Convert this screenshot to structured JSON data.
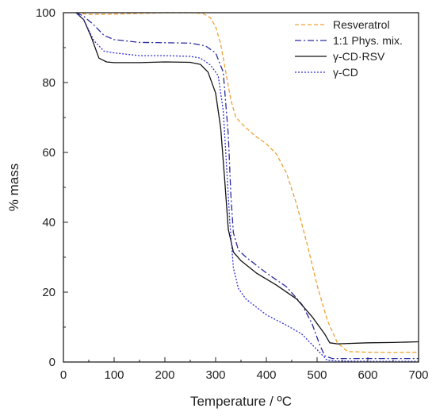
{
  "chart_data": {
    "type": "line",
    "title": "",
    "xlabel": "Temperature / ºC",
    "ylabel": "% mass",
    "xlim": [
      0,
      700
    ],
    "ylim": [
      0,
      100
    ],
    "xticks": [
      0,
      100,
      200,
      300,
      400,
      500,
      600,
      700
    ],
    "yticks": [
      0,
      20,
      40,
      60,
      80,
      100
    ],
    "grid": false,
    "legend_position": "top-right",
    "series": [
      {
        "name": "Resveratrol",
        "color": "#f0a030",
        "dash": "dashed",
        "points": [
          [
            25,
            100
          ],
          [
            50,
            99.5
          ],
          [
            100,
            99.6
          ],
          [
            150,
            99.8
          ],
          [
            200,
            100
          ],
          [
            250,
            100
          ],
          [
            275,
            99.8
          ],
          [
            290,
            98.5
          ],
          [
            300,
            96
          ],
          [
            310,
            91
          ],
          [
            320,
            83
          ],
          [
            330,
            75
          ],
          [
            340,
            70
          ],
          [
            360,
            67
          ],
          [
            380,
            64.5
          ],
          [
            400,
            62.5
          ],
          [
            420,
            59.5
          ],
          [
            440,
            54
          ],
          [
            460,
            45
          ],
          [
            480,
            34
          ],
          [
            500,
            22
          ],
          [
            520,
            12
          ],
          [
            540,
            5.5
          ],
          [
            560,
            3
          ],
          [
            600,
            2.8
          ],
          [
            650,
            2.7
          ],
          [
            700,
            2.8
          ]
        ]
      },
      {
        "name": "1:1 Phys. mix.",
        "color": "#2a2aa0",
        "dash": "dashdot",
        "points": [
          [
            25,
            100
          ],
          [
            40,
            99
          ],
          [
            60,
            96.5
          ],
          [
            80,
            93.5
          ],
          [
            100,
            92.3
          ],
          [
            150,
            91.5
          ],
          [
            200,
            91.4
          ],
          [
            250,
            91.3
          ],
          [
            280,
            90.5
          ],
          [
            300,
            88.5
          ],
          [
            315,
            83
          ],
          [
            325,
            65
          ],
          [
            330,
            48
          ],
          [
            335,
            37
          ],
          [
            345,
            32
          ],
          [
            360,
            30
          ],
          [
            400,
            25.5
          ],
          [
            440,
            21.5
          ],
          [
            470,
            16.5
          ],
          [
            490,
            11
          ],
          [
            505,
            5
          ],
          [
            515,
            1.8
          ],
          [
            530,
            1
          ],
          [
            600,
            1
          ],
          [
            700,
            1
          ]
        ]
      },
      {
        "name": "γ-CD·RSV",
        "color": "#111111",
        "dash": "solid",
        "points": [
          [
            25,
            100
          ],
          [
            40,
            98
          ],
          [
            55,
            93
          ],
          [
            70,
            87
          ],
          [
            85,
            85.9
          ],
          [
            100,
            85.7
          ],
          [
            150,
            85.7
          ],
          [
            200,
            85.9
          ],
          [
            250,
            85.8
          ],
          [
            270,
            85.2
          ],
          [
            285,
            83
          ],
          [
            300,
            77
          ],
          [
            310,
            67
          ],
          [
            318,
            52
          ],
          [
            325,
            38
          ],
          [
            335,
            31.5
          ],
          [
            350,
            29
          ],
          [
            380,
            25.5
          ],
          [
            420,
            22
          ],
          [
            460,
            18
          ],
          [
            490,
            13
          ],
          [
            515,
            8
          ],
          [
            525,
            5.5
          ],
          [
            540,
            5.2
          ],
          [
            600,
            5.5
          ],
          [
            650,
            5.6
          ],
          [
            700,
            5.8
          ]
        ]
      },
      {
        "name": "γ-CD",
        "color": "#3030d8",
        "dash": "dotted",
        "points": [
          [
            25,
            100
          ],
          [
            40,
            98
          ],
          [
            60,
            92
          ],
          [
            80,
            89
          ],
          [
            100,
            88.5
          ],
          [
            150,
            87.7
          ],
          [
            200,
            87.7
          ],
          [
            250,
            87.5
          ],
          [
            270,
            87
          ],
          [
            290,
            85
          ],
          [
            305,
            82
          ],
          [
            315,
            72
          ],
          [
            322,
            55
          ],
          [
            328,
            40
          ],
          [
            335,
            27
          ],
          [
            345,
            21
          ],
          [
            360,
            18
          ],
          [
            400,
            13.5
          ],
          [
            440,
            10.5
          ],
          [
            470,
            8
          ],
          [
            490,
            5
          ],
          [
            510,
            2
          ],
          [
            520,
            0.5
          ],
          [
            540,
            0.3
          ],
          [
            600,
            0.2
          ],
          [
            700,
            0.2
          ]
        ]
      }
    ]
  }
}
